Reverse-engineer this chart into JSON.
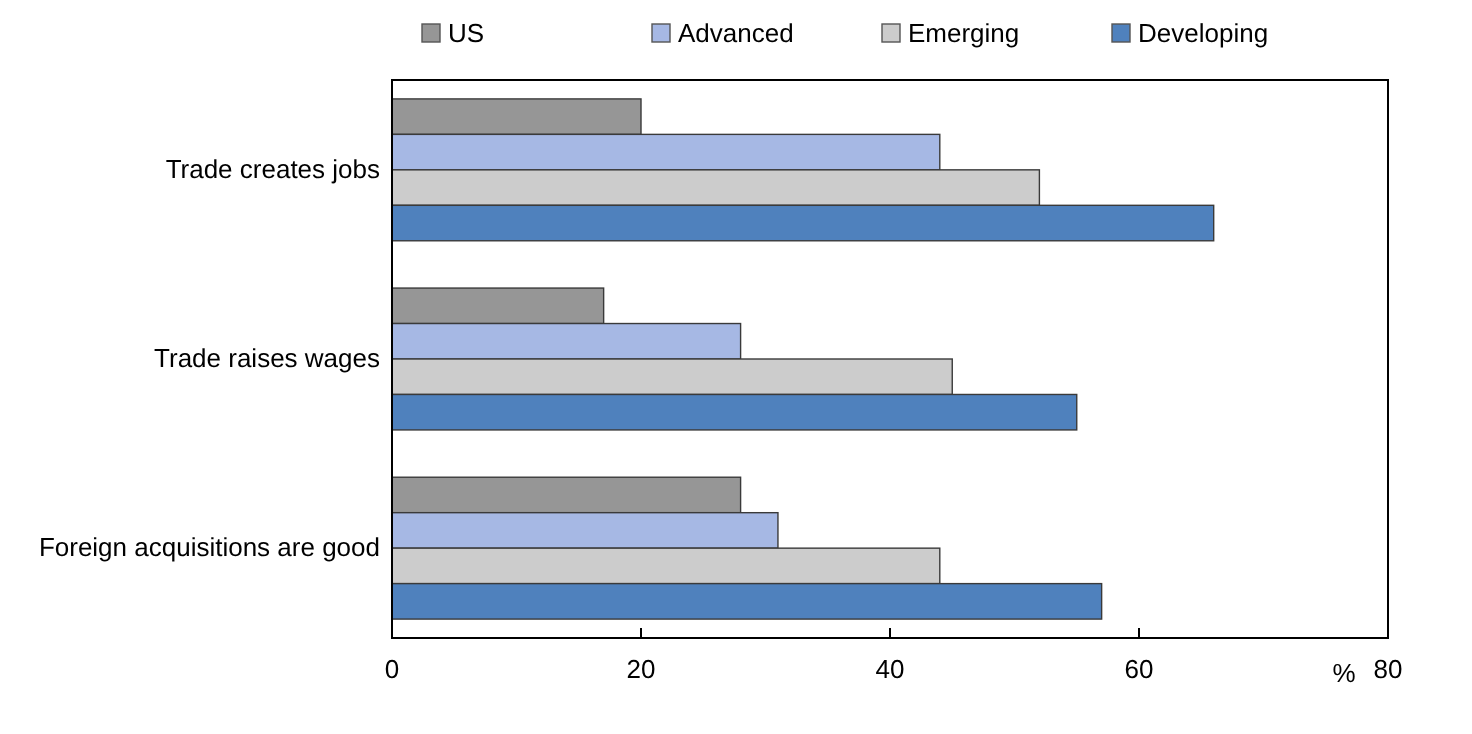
{
  "chart_data": {
    "type": "bar",
    "orientation": "horizontal",
    "xlabel": "%",
    "categories": [
      "Trade creates jobs",
      "Trade raises wages",
      "Foreign acquisitions are good"
    ],
    "series": [
      {
        "name": "US",
        "color": "#969696",
        "values": [
          20,
          17,
          28
        ]
      },
      {
        "name": "Advanced",
        "color": "#a6b8e4",
        "values": [
          44,
          28,
          31
        ]
      },
      {
        "name": "Emerging",
        "color": "#cccccc",
        "values": [
          52,
          45,
          44
        ]
      },
      {
        "name": "Developing",
        "color": "#4f81bd",
        "values": [
          66,
          55,
          57
        ]
      }
    ],
    "xlim": [
      0,
      80
    ],
    "xticks": [
      0,
      20,
      40,
      60,
      80
    ],
    "legend": "top",
    "grid": false
  }
}
